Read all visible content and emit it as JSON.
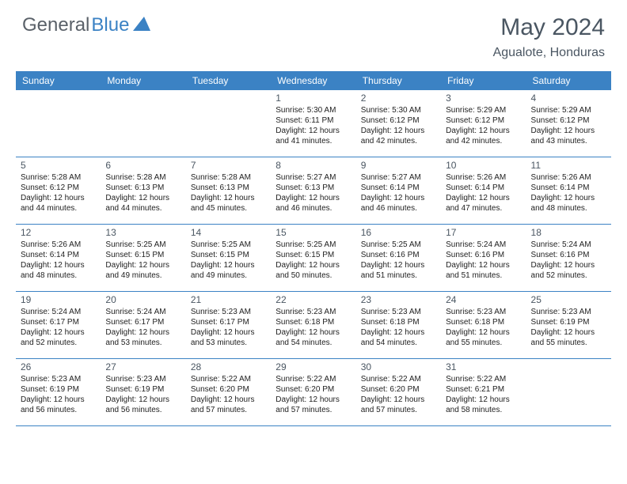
{
  "brand": {
    "part1": "General",
    "part2": "Blue"
  },
  "title": "May 2024",
  "location": "Agualote, Honduras",
  "colors": {
    "header_bg": "#3b82c4",
    "header_text": "#ffffff",
    "page_bg": "#ffffff",
    "text": "#222222",
    "muted": "#4a5662",
    "divider": "#3b82c4"
  },
  "typography": {
    "body_pt": 10,
    "daynum_pt": 12,
    "header_pt": 12,
    "title_pt": 30,
    "location_pt": 16
  },
  "weekdays": [
    "Sunday",
    "Monday",
    "Tuesday",
    "Wednesday",
    "Thursday",
    "Friday",
    "Saturday"
  ],
  "weeks": [
    [
      null,
      null,
      null,
      {
        "n": "1",
        "sr": "Sunrise: 5:30 AM",
        "ss": "Sunset: 6:11 PM",
        "d1": "Daylight: 12 hours",
        "d2": "and 41 minutes."
      },
      {
        "n": "2",
        "sr": "Sunrise: 5:30 AM",
        "ss": "Sunset: 6:12 PM",
        "d1": "Daylight: 12 hours",
        "d2": "and 42 minutes."
      },
      {
        "n": "3",
        "sr": "Sunrise: 5:29 AM",
        "ss": "Sunset: 6:12 PM",
        "d1": "Daylight: 12 hours",
        "d2": "and 42 minutes."
      },
      {
        "n": "4",
        "sr": "Sunrise: 5:29 AM",
        "ss": "Sunset: 6:12 PM",
        "d1": "Daylight: 12 hours",
        "d2": "and 43 minutes."
      }
    ],
    [
      {
        "n": "5",
        "sr": "Sunrise: 5:28 AM",
        "ss": "Sunset: 6:12 PM",
        "d1": "Daylight: 12 hours",
        "d2": "and 44 minutes."
      },
      {
        "n": "6",
        "sr": "Sunrise: 5:28 AM",
        "ss": "Sunset: 6:13 PM",
        "d1": "Daylight: 12 hours",
        "d2": "and 44 minutes."
      },
      {
        "n": "7",
        "sr": "Sunrise: 5:28 AM",
        "ss": "Sunset: 6:13 PM",
        "d1": "Daylight: 12 hours",
        "d2": "and 45 minutes."
      },
      {
        "n": "8",
        "sr": "Sunrise: 5:27 AM",
        "ss": "Sunset: 6:13 PM",
        "d1": "Daylight: 12 hours",
        "d2": "and 46 minutes."
      },
      {
        "n": "9",
        "sr": "Sunrise: 5:27 AM",
        "ss": "Sunset: 6:14 PM",
        "d1": "Daylight: 12 hours",
        "d2": "and 46 minutes."
      },
      {
        "n": "10",
        "sr": "Sunrise: 5:26 AM",
        "ss": "Sunset: 6:14 PM",
        "d1": "Daylight: 12 hours",
        "d2": "and 47 minutes."
      },
      {
        "n": "11",
        "sr": "Sunrise: 5:26 AM",
        "ss": "Sunset: 6:14 PM",
        "d1": "Daylight: 12 hours",
        "d2": "and 48 minutes."
      }
    ],
    [
      {
        "n": "12",
        "sr": "Sunrise: 5:26 AM",
        "ss": "Sunset: 6:14 PM",
        "d1": "Daylight: 12 hours",
        "d2": "and 48 minutes."
      },
      {
        "n": "13",
        "sr": "Sunrise: 5:25 AM",
        "ss": "Sunset: 6:15 PM",
        "d1": "Daylight: 12 hours",
        "d2": "and 49 minutes."
      },
      {
        "n": "14",
        "sr": "Sunrise: 5:25 AM",
        "ss": "Sunset: 6:15 PM",
        "d1": "Daylight: 12 hours",
        "d2": "and 49 minutes."
      },
      {
        "n": "15",
        "sr": "Sunrise: 5:25 AM",
        "ss": "Sunset: 6:15 PM",
        "d1": "Daylight: 12 hours",
        "d2": "and 50 minutes."
      },
      {
        "n": "16",
        "sr": "Sunrise: 5:25 AM",
        "ss": "Sunset: 6:16 PM",
        "d1": "Daylight: 12 hours",
        "d2": "and 51 minutes."
      },
      {
        "n": "17",
        "sr": "Sunrise: 5:24 AM",
        "ss": "Sunset: 6:16 PM",
        "d1": "Daylight: 12 hours",
        "d2": "and 51 minutes."
      },
      {
        "n": "18",
        "sr": "Sunrise: 5:24 AM",
        "ss": "Sunset: 6:16 PM",
        "d1": "Daylight: 12 hours",
        "d2": "and 52 minutes."
      }
    ],
    [
      {
        "n": "19",
        "sr": "Sunrise: 5:24 AM",
        "ss": "Sunset: 6:17 PM",
        "d1": "Daylight: 12 hours",
        "d2": "and 52 minutes."
      },
      {
        "n": "20",
        "sr": "Sunrise: 5:24 AM",
        "ss": "Sunset: 6:17 PM",
        "d1": "Daylight: 12 hours",
        "d2": "and 53 minutes."
      },
      {
        "n": "21",
        "sr": "Sunrise: 5:23 AM",
        "ss": "Sunset: 6:17 PM",
        "d1": "Daylight: 12 hours",
        "d2": "and 53 minutes."
      },
      {
        "n": "22",
        "sr": "Sunrise: 5:23 AM",
        "ss": "Sunset: 6:18 PM",
        "d1": "Daylight: 12 hours",
        "d2": "and 54 minutes."
      },
      {
        "n": "23",
        "sr": "Sunrise: 5:23 AM",
        "ss": "Sunset: 6:18 PM",
        "d1": "Daylight: 12 hours",
        "d2": "and 54 minutes."
      },
      {
        "n": "24",
        "sr": "Sunrise: 5:23 AM",
        "ss": "Sunset: 6:18 PM",
        "d1": "Daylight: 12 hours",
        "d2": "and 55 minutes."
      },
      {
        "n": "25",
        "sr": "Sunrise: 5:23 AM",
        "ss": "Sunset: 6:19 PM",
        "d1": "Daylight: 12 hours",
        "d2": "and 55 minutes."
      }
    ],
    [
      {
        "n": "26",
        "sr": "Sunrise: 5:23 AM",
        "ss": "Sunset: 6:19 PM",
        "d1": "Daylight: 12 hours",
        "d2": "and 56 minutes."
      },
      {
        "n": "27",
        "sr": "Sunrise: 5:23 AM",
        "ss": "Sunset: 6:19 PM",
        "d1": "Daylight: 12 hours",
        "d2": "and 56 minutes."
      },
      {
        "n": "28",
        "sr": "Sunrise: 5:22 AM",
        "ss": "Sunset: 6:20 PM",
        "d1": "Daylight: 12 hours",
        "d2": "and 57 minutes."
      },
      {
        "n": "29",
        "sr": "Sunrise: 5:22 AM",
        "ss": "Sunset: 6:20 PM",
        "d1": "Daylight: 12 hours",
        "d2": "and 57 minutes."
      },
      {
        "n": "30",
        "sr": "Sunrise: 5:22 AM",
        "ss": "Sunset: 6:20 PM",
        "d1": "Daylight: 12 hours",
        "d2": "and 57 minutes."
      },
      {
        "n": "31",
        "sr": "Sunrise: 5:22 AM",
        "ss": "Sunset: 6:21 PM",
        "d1": "Daylight: 12 hours",
        "d2": "and 58 minutes."
      },
      null
    ]
  ]
}
